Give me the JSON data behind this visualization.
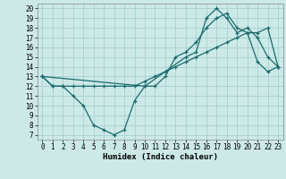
{
  "title": "",
  "xlabel": "Humidex (Indice chaleur)",
  "bg_color": "#cce9e8",
  "grid_color": "#aad4d3",
  "line_color": "#1a6b6b",
  "xlim": [
    -0.5,
    23.5
  ],
  "ylim": [
    6.5,
    20.5
  ],
  "xticks": [
    0,
    1,
    2,
    3,
    4,
    5,
    6,
    7,
    8,
    9,
    10,
    11,
    12,
    13,
    14,
    15,
    16,
    17,
    18,
    19,
    20,
    21,
    22,
    23
  ],
  "yticks": [
    7,
    8,
    9,
    10,
    11,
    12,
    13,
    14,
    15,
    16,
    17,
    18,
    19,
    20
  ],
  "line1_x": [
    0,
    1,
    2,
    3,
    4,
    5,
    6,
    7,
    8,
    9,
    10,
    11,
    12,
    13,
    14,
    15,
    16,
    17,
    18,
    19,
    20,
    21,
    22,
    23
  ],
  "line1_y": [
    13,
    12,
    12,
    11,
    10,
    8,
    7.5,
    7,
    7.5,
    10.5,
    12,
    12,
    13,
    15,
    15.5,
    16.5,
    18,
    19,
    19.5,
    18,
    17.5,
    14.5,
    13.5,
    14
  ],
  "line2_x": [
    0,
    1,
    2,
    3,
    4,
    5,
    6,
    7,
    8,
    9,
    10,
    11,
    12,
    13,
    14,
    15,
    16,
    17,
    18,
    19,
    20,
    21,
    22,
    23
  ],
  "line2_y": [
    13,
    12,
    12,
    12,
    12,
    12,
    12,
    12,
    12,
    12,
    12.5,
    13,
    13.5,
    14,
    14.5,
    15,
    15.5,
    16,
    16.5,
    17,
    17.5,
    17.5,
    18,
    14
  ],
  "line3_x": [
    0,
    10,
    14,
    15,
    16,
    17,
    18,
    19,
    20,
    21,
    22,
    23
  ],
  "line3_y": [
    13,
    12,
    15,
    15.5,
    19,
    20,
    19,
    17.5,
    18,
    17,
    15,
    14
  ],
  "tick_fontsize": 5.5,
  "xlabel_fontsize": 6.5,
  "marker_size": 3.5,
  "line_width": 0.9
}
